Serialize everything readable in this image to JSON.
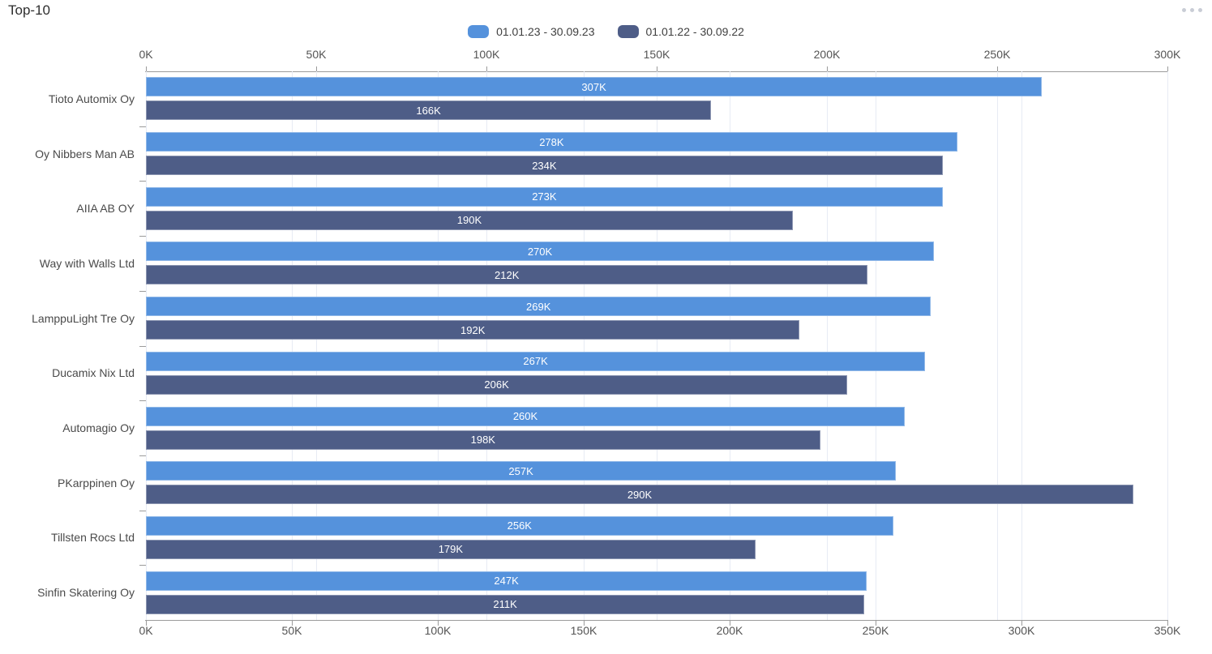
{
  "header": {
    "title": "Top-10",
    "menu_icon": "ellipsis-icon"
  },
  "legend": [
    {
      "label": "01.01.23 - 30.09.23",
      "color": "#5592DC"
    },
    {
      "label": "01.01.22 - 30.09.22",
      "color": "#4E5D87"
    }
  ],
  "colors": {
    "series_2023": "#5592DC",
    "series_2022": "#4E5D87",
    "gridline": "#e7ebf4",
    "axis_line": "#9b9b9b",
    "tick_label": "#545454",
    "category_label": "#4a4a4a",
    "bar_value_label": "#ffffff",
    "menu_dots": "#c9cdd6"
  },
  "chart_data": {
    "type": "bar",
    "orientation": "horizontal",
    "title": "Top-10",
    "grid": true,
    "legend_position": "top-center",
    "categories": [
      "Tioto Automix Oy",
      "Oy Nibbers Man AB",
      "AIIA AB OY",
      "Way with Walls Ltd",
      "LamppuLight Tre Oy",
      "Ducamix Nix Ltd",
      "Automagio Oy",
      "PKarppinen Oy",
      "Tillsten Rocs Ltd",
      "Sinfin Skatering Oy"
    ],
    "series": [
      {
        "name": "01.01.23 - 30.09.23",
        "color": "#5592DC",
        "axis": "bottom",
        "axis_max_k": 350,
        "values_k": [
          307,
          278,
          273,
          270,
          269,
          267,
          260,
          257,
          256,
          247
        ],
        "labels": [
          "307K",
          "278K",
          "273K",
          "270K",
          "269K",
          "267K",
          "260K",
          "257K",
          "256K",
          "247K"
        ]
      },
      {
        "name": "01.01.22 - 30.09.22",
        "color": "#4E5D87",
        "axis": "top",
        "axis_max_k": 300,
        "values_k": [
          166,
          234,
          190,
          212,
          192,
          206,
          198,
          290,
          179,
          211
        ],
        "labels": [
          "166K",
          "234K",
          "190K",
          "212K",
          "192K",
          "206K",
          "198K",
          "290K",
          "179K",
          "211K"
        ]
      }
    ],
    "axes": {
      "top": {
        "ticks": [
          "0K",
          "50K",
          "100K",
          "150K",
          "200K",
          "250K",
          "300K"
        ],
        "max_k": 300,
        "range_k": [
          0,
          300
        ]
      },
      "bottom": {
        "ticks": [
          "0K",
          "50K",
          "100K",
          "150K",
          "200K",
          "250K",
          "300K",
          "350K"
        ],
        "max_k": 350,
        "range_k": [
          0,
          350
        ]
      }
    }
  }
}
